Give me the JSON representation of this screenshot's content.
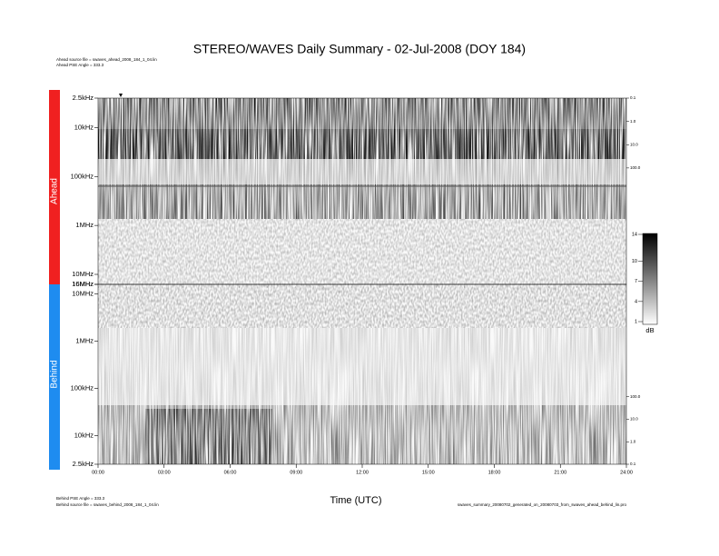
{
  "chart_data": {
    "type": "spectrogram",
    "title": "STEREO/WAVES Daily Summary - 02-Jul-2008 (DOY 184)",
    "header_notes": [
      "Ahead source file = swaves_ahead_2008_184_1_04.lin",
      "Ahead PSE Angle = 333.3"
    ],
    "footer_notes": [
      "Behind PSE Angle = 333.3",
      "Behind source file = swaves_behind_2008_184_1_04.lin"
    ],
    "footer_right": "swaves_summary_20080702_generated_on_20080703_from_swaves_ahead_behind_lin.pro",
    "x_label": "Time (UTC)",
    "xlim": [
      0,
      24
    ],
    "xticks": [
      {
        "value": 0,
        "label": "00:00"
      },
      {
        "value": 3,
        "label": "03:00"
      },
      {
        "value": 6,
        "label": "06:00"
      },
      {
        "value": 9,
        "label": "09:00"
      },
      {
        "value": 12,
        "label": "12:00"
      },
      {
        "value": 15,
        "label": "15:00"
      },
      {
        "value": 18,
        "label": "18:00"
      },
      {
        "value": 21,
        "label": "21:00"
      },
      {
        "value": 24,
        "label": "24:00"
      }
    ],
    "log_scale": true,
    "panels": [
      {
        "name": "Ahead",
        "color": "#f02020",
        "ylim": [
          16000000,
          2500
        ],
        "yticks": [
          {
            "value": 2500,
            "label": "2.5kHz"
          },
          {
            "value": 10000,
            "label": "10kHz"
          },
          {
            "value": 100000,
            "label": "100kHz"
          },
          {
            "value": 1000000,
            "label": "1MHz"
          },
          {
            "value": 10000000,
            "label": "10MHz"
          },
          {
            "value": 16000000,
            "label": "16MHz"
          }
        ],
        "y2lim": [
          10000000,
          0.1
        ],
        "y2ticks": [
          0.1,
          {
            "value": 1,
            "label": "1.0"
          },
          {
            "value": 10,
            "label": "10.0"
          },
          {
            "value": 100,
            "label": "100.0"
          }
        ]
      },
      {
        "name": "Behind",
        "color": "#1e8cf0",
        "ylim": [
          2500,
          16000000
        ],
        "yticks": [
          {
            "value": 16000000,
            "label": "16MHz"
          },
          {
            "value": 10000000,
            "label": "10MHz"
          },
          {
            "value": 1000000,
            "label": "1MHz"
          },
          {
            "value": 100000,
            "label": "100kHz"
          },
          {
            "value": 10000,
            "label": "10kHz"
          },
          {
            "value": 2500,
            "label": "2.5kHz"
          }
        ],
        "y2lim": [
          0.1,
          10000000
        ],
        "y2ticks": [
          {
            "value": 100,
            "label": "100.0"
          },
          {
            "value": 10,
            "label": "10.0"
          },
          {
            "value": 1,
            "label": "1.0"
          },
          0.1
        ]
      }
    ],
    "colorbar": {
      "label": "dB",
      "clim": [
        1,
        14
      ],
      "ticks": [
        1,
        4,
        7,
        10,
        14
      ]
    }
  }
}
